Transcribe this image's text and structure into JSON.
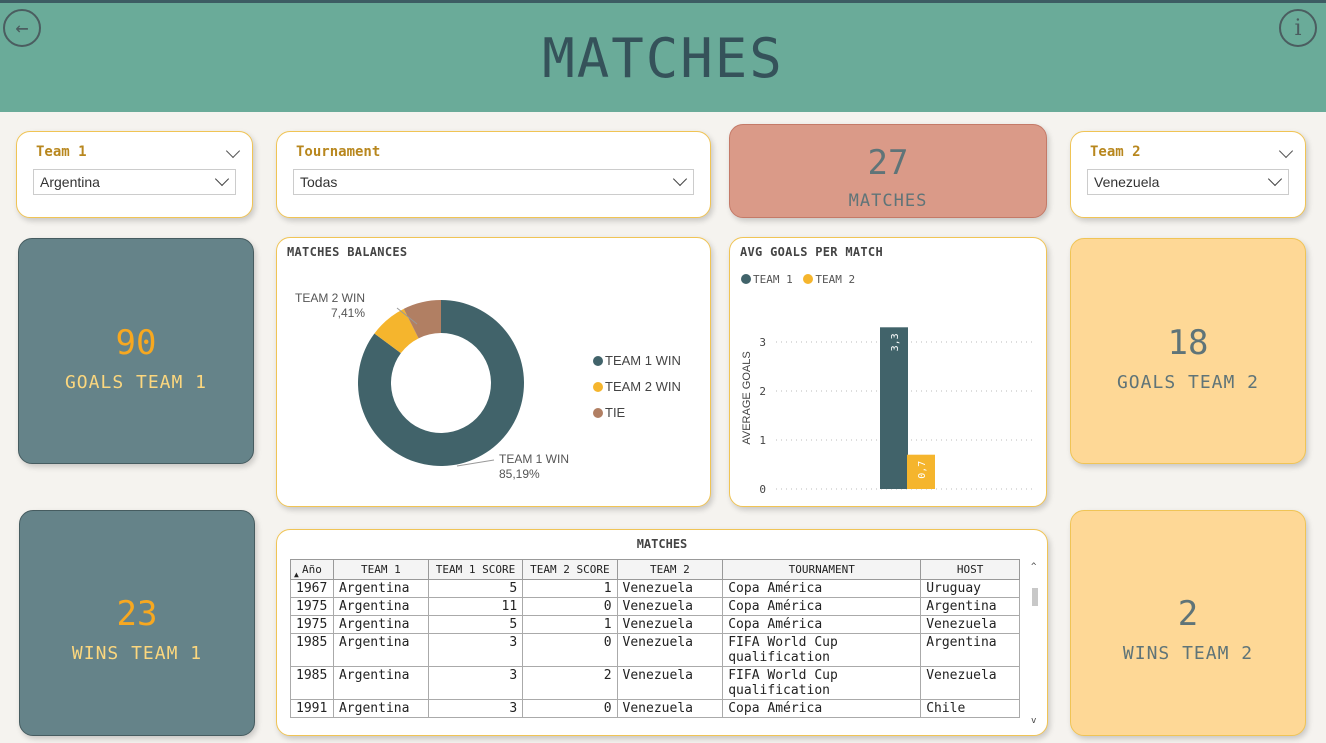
{
  "header": {
    "title": "MATCHES",
    "back_icon": "←",
    "info_icon": "i"
  },
  "slicers": {
    "team1": {
      "label": "Team 1",
      "value": "Argentina"
    },
    "tournament": {
      "label": "Tournament",
      "value": "Todas"
    },
    "team2": {
      "label": "Team 2",
      "value": "Venezuela"
    }
  },
  "kpis": {
    "matches": {
      "value": "27",
      "label": "MATCHES"
    },
    "goals_team1": {
      "value": "90",
      "label": "GOALS TEAM 1"
    },
    "wins_team1": {
      "value": "23",
      "label": "WINS TEAM 1"
    },
    "goals_team2": {
      "value": "18",
      "label": "GOALS TEAM 2"
    },
    "wins_team2": {
      "value": "2",
      "label": "WINS TEAM 2"
    }
  },
  "colors": {
    "team1": "#41636a",
    "team2": "#f5b52d",
    "tie": "#b17f63",
    "matches_card": "#da9a88"
  },
  "balances": {
    "title": "MATCHES BALANCES",
    "callouts": {
      "team2": {
        "name": "TEAM 2 WIN",
        "pct": "7,41%"
      },
      "team1": {
        "name": "TEAM 1 WIN",
        "pct": "85,19%"
      }
    },
    "legend": [
      "TEAM 1 WIN",
      "TEAM 2 WIN",
      "TIE"
    ]
  },
  "avg_goals": {
    "title": "AVG GOALS PER MATCH",
    "legend": [
      "TEAM 1",
      "TEAM 2"
    ],
    "ylabel": "AVERAGE GOALS"
  },
  "chart_data": [
    {
      "type": "pie",
      "title": "MATCHES BALANCES",
      "categories": [
        "TEAM 1 WIN",
        "TEAM 2 WIN",
        "TIE"
      ],
      "values": [
        85.19,
        7.41,
        7.41
      ],
      "unit": "%"
    },
    {
      "type": "bar",
      "title": "AVG GOALS PER MATCH",
      "categories": [
        ""
      ],
      "series": [
        {
          "name": "TEAM 1",
          "values": [
            3.3
          ],
          "label": "3,3"
        },
        {
          "name": "TEAM 2",
          "values": [
            0.7
          ],
          "label": "0,7"
        }
      ],
      "ylabel": "AVERAGE GOALS",
      "yticks": [
        "0",
        "1",
        "2",
        "3"
      ],
      "ylim": [
        0,
        3.3
      ]
    }
  ],
  "table": {
    "title": "MATCHES",
    "columns": [
      "Año",
      "TEAM 1",
      "TEAM 1 SCORE",
      "TEAM 2 SCORE",
      "TEAM 2",
      "TOURNAMENT",
      "HOST"
    ],
    "sort_indicator": "▲",
    "rows": [
      [
        "1967",
        "Argentina",
        "5",
        "1",
        "Venezuela",
        "Copa América",
        "Uruguay"
      ],
      [
        "1975",
        "Argentina",
        "11",
        "0",
        "Venezuela",
        "Copa América",
        "Argentina"
      ],
      [
        "1975",
        "Argentina",
        "5",
        "1",
        "Venezuela",
        "Copa América",
        "Venezuela"
      ],
      [
        "1985",
        "Argentina",
        "3",
        "0",
        "Venezuela",
        "FIFA World Cup qualification",
        "Argentina"
      ],
      [
        "1985",
        "Argentina",
        "3",
        "2",
        "Venezuela",
        "FIFA World Cup qualification",
        "Venezuela"
      ],
      [
        "1991",
        "Argentina",
        "3",
        "0",
        "Venezuela",
        "Copa América",
        "Chile"
      ]
    ]
  }
}
